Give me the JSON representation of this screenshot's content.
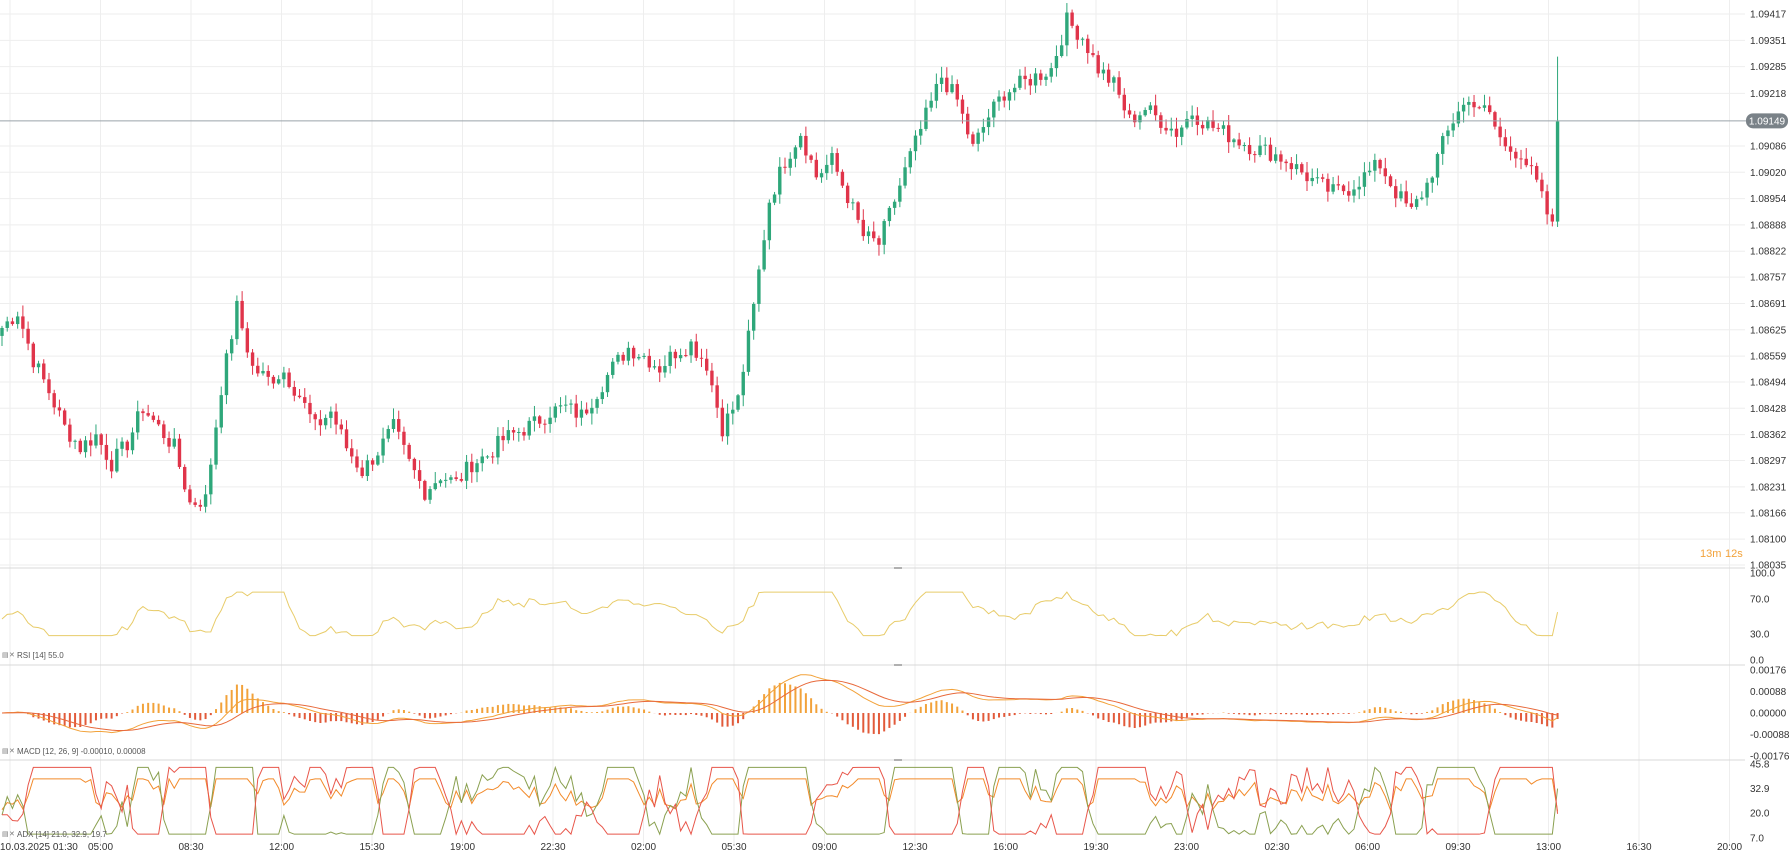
{
  "colors": {
    "up": "#2ea77a",
    "down": "#e0344a",
    "rsi": "#e8cc6a",
    "macd": "#f2a23a",
    "signal": "#e86a3c",
    "hist_pos": "#f2a23a",
    "hist_neg": "#e25a3a",
    "adx": "#f28a2a",
    "di_plus": "#8aa050",
    "di_minus": "#e8564a",
    "grid": "#eeeeee",
    "price_line": "#9aa3aa",
    "price_badge": "#7a8288",
    "countdown": "#f2a23a"
  },
  "price": {
    "current": "1.09149",
    "countdown_minutes": "13m",
    "countdown_seconds": "12s"
  },
  "indicators": {
    "rsi_label": "RSI [14]  55.0",
    "macd_label": "MACD [12, 26, 9]  -0.00010,  0.00008",
    "adx_label": "ADX [14]  21.0,  32.9,  19.7"
  },
  "chart_data": {
    "type": "candlestick",
    "x_ticks": [
      "10.03.2025  01:30",
      "05:00",
      "08:30",
      "12:00",
      "15:30",
      "19:00",
      "22:30",
      "02:00",
      "05:30",
      "09:00",
      "12:30",
      "16:00",
      "19:30",
      "23:00",
      "02:30",
      "06:00",
      "09:30",
      "13:00",
      "16:30",
      "20:00"
    ],
    "ylim": [
      1.08035,
      1.09417
    ],
    "price_ticks": [
      "1.09417",
      "1.09351",
      "1.09285",
      "1.09218",
      "1.09086",
      "1.09020",
      "1.08954",
      "1.08888",
      "1.08822",
      "1.08757",
      "1.08691",
      "1.08625",
      "1.08559",
      "1.08494",
      "1.08428",
      "1.08362",
      "1.08297",
      "1.08231",
      "1.08166",
      "1.08100",
      "1.08035"
    ],
    "closes_anchors": [
      [
        0,
        1.0863
      ],
      [
        3,
        1.0867
      ],
      [
        6,
        1.0855
      ],
      [
        9,
        1.0847
      ],
      [
        12,
        1.0838
      ],
      [
        15,
        1.0833
      ],
      [
        18,
        1.0836
      ],
      [
        21,
        1.0829
      ],
      [
        24,
        1.0834
      ],
      [
        27,
        1.0843
      ],
      [
        30,
        1.0838
      ],
      [
        33,
        1.0833
      ],
      [
        36,
        1.0819
      ],
      [
        39,
        1.082
      ],
      [
        42,
        1.0848
      ],
      [
        45,
        1.0868
      ],
      [
        48,
        1.0853
      ],
      [
        51,
        1.085
      ],
      [
        54,
        1.0852
      ],
      [
        57,
        1.0846
      ],
      [
        60,
        1.0838
      ],
      [
        63,
        1.0842
      ],
      [
        66,
        1.0833
      ],
      [
        69,
        1.0827
      ],
      [
        72,
        1.0832
      ],
      [
        75,
        1.0838
      ],
      [
        78,
        1.0829
      ],
      [
        81,
        1.0822
      ],
      [
        84,
        1.0826
      ],
      [
        87,
        1.0824
      ],
      [
        90,
        1.0829
      ],
      [
        93,
        1.0831
      ],
      [
        96,
        1.0835
      ],
      [
        99,
        1.0837
      ],
      [
        102,
        1.0839
      ],
      [
        105,
        1.0842
      ],
      [
        108,
        1.0843
      ],
      [
        111,
        1.0841
      ],
      [
        114,
        1.0847
      ],
      [
        117,
        1.0853
      ],
      [
        120,
        1.0858
      ],
      [
        123,
        1.0856
      ],
      [
        126,
        1.0853
      ],
      [
        129,
        1.0857
      ],
      [
        132,
        1.0859
      ],
      [
        135,
        1.0854
      ],
      [
        138,
        1.0838
      ],
      [
        141,
        1.0845
      ],
      [
        144,
        1.0868
      ],
      [
        147,
        1.0895
      ],
      [
        150,
        1.0905
      ],
      [
        153,
        1.0912
      ],
      [
        156,
        1.0901
      ],
      [
        159,
        1.0905
      ],
      [
        162,
        1.0896
      ],
      [
        165,
        1.0886
      ],
      [
        168,
        1.0884
      ],
      [
        171,
        1.0895
      ],
      [
        174,
        1.0906
      ],
      [
        177,
        1.0916
      ],
      [
        180,
        1.0926
      ],
      [
        183,
        1.092
      ],
      [
        186,
        1.0908
      ],
      [
        189,
        1.0916
      ],
      [
        192,
        1.0922
      ],
      [
        195,
        1.0924
      ],
      [
        198,
        1.0926
      ],
      [
        201,
        1.0928
      ],
      [
        204,
        1.094
      ],
      [
        207,
        1.0936
      ],
      [
        210,
        1.0928
      ],
      [
        213,
        1.0924
      ],
      [
        216,
        1.0915
      ],
      [
        219,
        1.0918
      ],
      [
        222,
        1.0915
      ],
      [
        225,
        1.0912
      ],
      [
        228,
        1.0917
      ],
      [
        231,
        1.0914
      ],
      [
        234,
        1.0912
      ],
      [
        237,
        1.091
      ],
      [
        240,
        1.0908
      ],
      [
        243,
        1.0907
      ],
      [
        246,
        1.0905
      ],
      [
        249,
        1.0902
      ],
      [
        252,
        1.0899
      ],
      [
        255,
        1.0897
      ],
      [
        258,
        1.0898
      ],
      [
        261,
        1.0901
      ],
      [
        264,
        1.0904
      ],
      [
        267,
        1.0897
      ],
      [
        270,
        1.0892
      ],
      [
        273,
        1.0899
      ],
      [
        276,
        1.0909
      ],
      [
        279,
        1.0918
      ],
      [
        282,
        1.092
      ],
      [
        285,
        1.0916
      ],
      [
        288,
        1.0908
      ],
      [
        291,
        1.0907
      ],
      [
        294,
        1.0899
      ],
      [
        297,
        1.0888
      ],
      [
        298,
        1.0915
      ]
    ],
    "rsi": {
      "ylim": [
        0,
        100
      ],
      "ticks": [
        "100.0",
        "70.0",
        "30.0",
        "0.0"
      ],
      "last": 55.0
    },
    "macd": {
      "ylim": [
        -0.00176,
        0.00176
      ],
      "ticks": [
        "0.00176",
        "0.00088",
        "0.00000",
        "-0.00088",
        "-0.00176"
      ],
      "macd": -0.0001,
      "signal": 8e-05
    },
    "adx": {
      "ylim": [
        7.0,
        45.8
      ],
      "ticks": [
        "45.8",
        "32.9",
        "20.0",
        "7.0"
      ],
      "adx": 21.0,
      "di_plus": 32.9,
      "di_minus": 19.7
    }
  }
}
